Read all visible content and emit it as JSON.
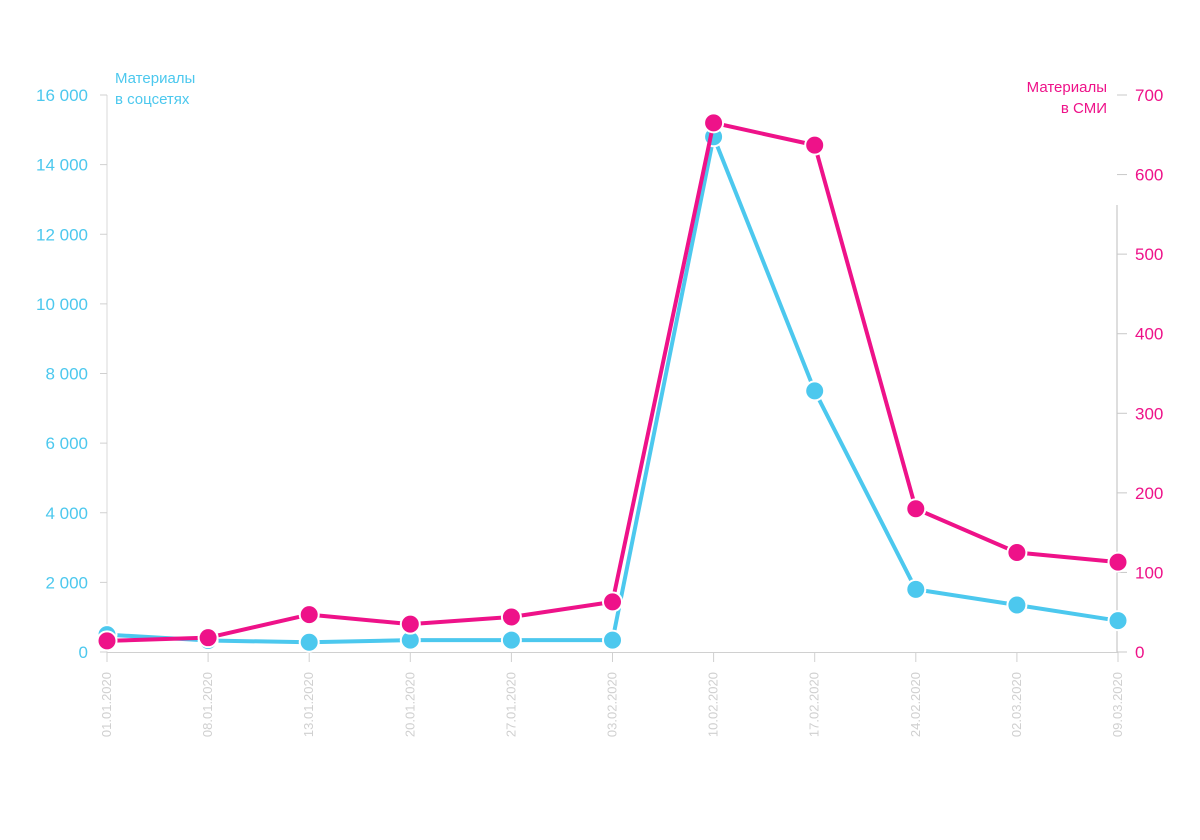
{
  "chart_data": {
    "type": "line",
    "categories": [
      "01.01.2020",
      "08.01.2020",
      "13.01.2020",
      "20.01.2020",
      "27.01.2020",
      "03.02.2020",
      "10.02.2020",
      "17.02.2020",
      "24.02.2020",
      "02.03.2020",
      "09.03.2020"
    ],
    "series": [
      {
        "name": "Материалы в соцсетях",
        "axis": "left",
        "color": "#4cc8ee",
        "values": [
          500,
          330,
          280,
          340,
          340,
          340,
          14800,
          7500,
          1800,
          1350,
          900
        ]
      },
      {
        "name": "Материалы в СМИ",
        "axis": "right",
        "color": "#ee1289",
        "values": [
          14,
          18,
          47,
          35,
          44,
          63,
          665,
          637,
          180,
          125,
          113
        ]
      }
    ],
    "left_axis": {
      "title_line1": "Материалы",
      "title_line2": "в соцсетях",
      "ylim": [
        0,
        16000
      ],
      "ticks": [
        "0",
        "2 000",
        "4 000",
        "6 000",
        "8 000",
        "10 000",
        "12 000",
        "14 000",
        "16 000"
      ],
      "color": "#4cc8ee"
    },
    "right_axis": {
      "title_line1": "Материалы",
      "title_line2": "в СМИ",
      "ylim": [
        0,
        700
      ],
      "ticks": [
        "0",
        "100",
        "200",
        "300",
        "400",
        "500",
        "600",
        "700"
      ],
      "color": "#ee1289"
    },
    "grid": false,
    "legend": "none"
  }
}
